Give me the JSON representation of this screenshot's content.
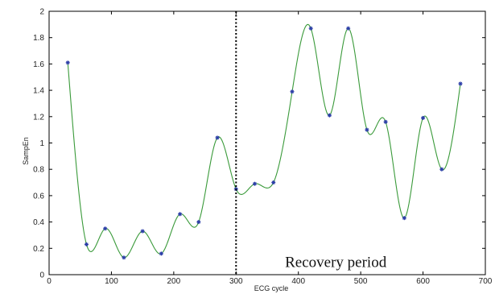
{
  "chart_data": {
    "type": "line",
    "title": "",
    "xlabel": "ECG cycle",
    "ylabel": "SampEn",
    "xlim": [
      0,
      700
    ],
    "ylim": [
      0,
      2
    ],
    "xticks": [
      0,
      100,
      200,
      300,
      400,
      500,
      600,
      700
    ],
    "yticks": [
      0,
      0.2,
      0.4,
      0.6,
      0.8,
      1,
      1.2,
      1.4,
      1.6,
      1.8,
      2
    ],
    "xtick_labels": [
      "0",
      "100",
      "200",
      "300",
      "400",
      "500",
      "600",
      "700"
    ],
    "ytick_labels": [
      "0",
      "0.2",
      "0.4",
      "0.6",
      "0.8",
      "1",
      "1.2",
      "1.4",
      "1.6",
      "1.8",
      "2"
    ],
    "grid": false,
    "series": [
      {
        "x": [
          30,
          60,
          90,
          120,
          150,
          180,
          210,
          240,
          270,
          300,
          330,
          360,
          390,
          420,
          450,
          480,
          510,
          540,
          570,
          600,
          630,
          660
        ],
        "values": [
          1.61,
          0.23,
          0.35,
          0.13,
          0.33,
          0.16,
          0.46,
          0.4,
          1.04,
          0.65,
          0.69,
          0.7,
          1.39,
          1.87,
          1.21,
          1.87,
          1.1,
          1.16,
          0.43,
          1.19,
          0.8,
          1.45
        ],
        "line_color": "#3a9a3a",
        "marker_color": "#2c3ea8"
      }
    ],
    "divider": {
      "x": 300,
      "style": "dotted"
    },
    "annotations": [
      {
        "text": "Recovery period",
        "x": 460,
        "y": 0.07
      }
    ]
  }
}
